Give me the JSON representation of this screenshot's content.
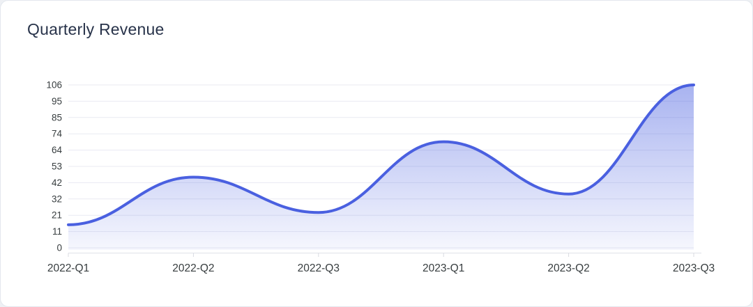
{
  "card": {
    "title": "Quarterly Revenue"
  },
  "chart_data": {
    "type": "area",
    "title": "Quarterly Revenue",
    "categories": [
      "2022-Q1",
      "2022-Q2",
      "2022-Q3",
      "2023-Q1",
      "2023-Q2",
      "2023-Q3"
    ],
    "values": [
      15,
      46,
      23,
      69,
      35,
      106
    ],
    "series": [
      {
        "name": "Revenue",
        "values": [
          15,
          46,
          23,
          69,
          35,
          106
        ]
      }
    ],
    "xlabel": "",
    "ylabel": "",
    "ylim": [
      0,
      106
    ],
    "y_tick_labels": [
      "0",
      "11",
      "21",
      "32",
      "42",
      "53",
      "64",
      "74",
      "85",
      "95",
      "106"
    ],
    "grid": true,
    "legend": false,
    "curve": "smooth",
    "colors": {
      "line": "#4a60e0",
      "fill_top": "rgba(74,96,224,0.48)",
      "fill_bottom": "rgba(74,96,224,0.05)",
      "gridline": "#e9eaf2",
      "axis": "#dfe1e8",
      "tick": "#d9dbe2",
      "label": "#373d3f",
      "title": "#28334a"
    }
  }
}
